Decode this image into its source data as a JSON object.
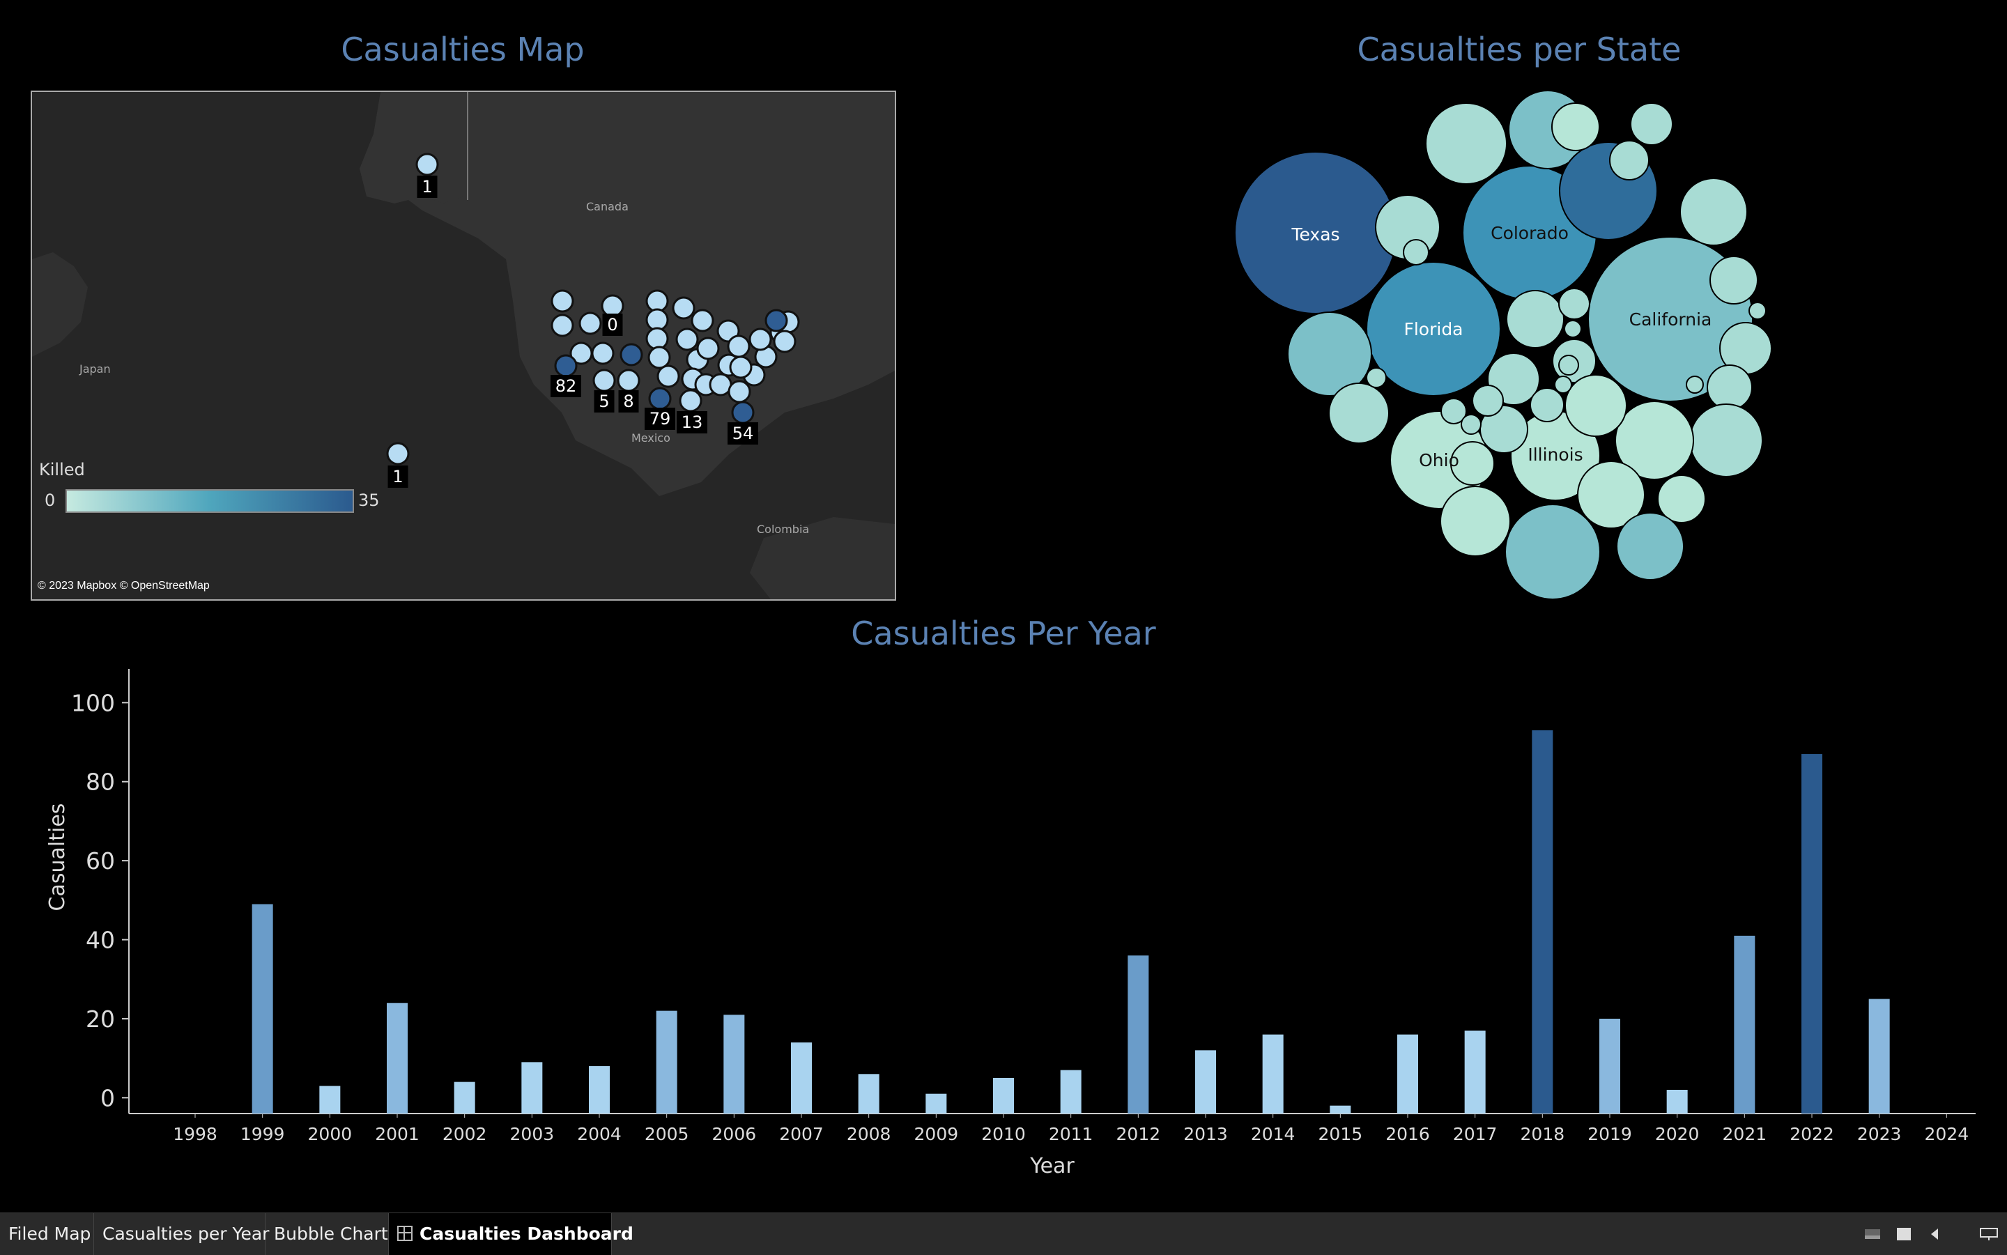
{
  "map": {
    "title": "Casualties Map",
    "region_labels": [
      "Canada",
      "Japan",
      "Mexico",
      "Colombia"
    ],
    "legend": {
      "title": "Killed",
      "min": "0",
      "max": "35"
    },
    "credit": "© 2023 Mapbox © OpenStreetMap",
    "point_labels": [
      "1",
      "0",
      "82",
      "5",
      "8",
      "79",
      "13",
      "54",
      "1"
    ]
  },
  "bubbles": {
    "title": "Casualties per State",
    "labels": [
      "Texas",
      "Colorado",
      "California",
      "Florida",
      "Ohio",
      "Illinois"
    ]
  },
  "colors": {
    "background": "#000000",
    "title": "#5b82b3",
    "scale_low": "#c6eae0",
    "scale_mid": "#4fa6bd",
    "scale_high": "#2b5a8e"
  },
  "chart_data": {
    "type": "bar",
    "title": "Casualties Per Year",
    "xlabel": "Year",
    "ylabel": "Casualties",
    "ylim": [
      -4,
      105
    ],
    "yticks": [
      0,
      20,
      40,
      60,
      80,
      100
    ],
    "categories": [
      "1998",
      "1999",
      "2000",
      "2001",
      "2002",
      "2003",
      "2004",
      "2005",
      "2006",
      "2007",
      "2008",
      "2009",
      "2010",
      "2011",
      "2012",
      "2013",
      "2014",
      "2015",
      "2016",
      "2017",
      "2018",
      "2019",
      "2020",
      "2021",
      "2022",
      "2023",
      "2024"
    ],
    "values": [
      null,
      49,
      3,
      24,
      4,
      9,
      8,
      22,
      21,
      14,
      6,
      1,
      5,
      7,
      36,
      12,
      16,
      -2,
      16,
      17,
      93,
      20,
      2,
      41,
      87,
      25,
      null
    ]
  },
  "tabs": [
    {
      "label": "Filed Map",
      "active": false
    },
    {
      "label": "Casualties per Year",
      "active": false
    },
    {
      "label": "Bubble Chart",
      "active": false
    },
    {
      "label": "Casualties Dashboard",
      "active": true
    }
  ]
}
